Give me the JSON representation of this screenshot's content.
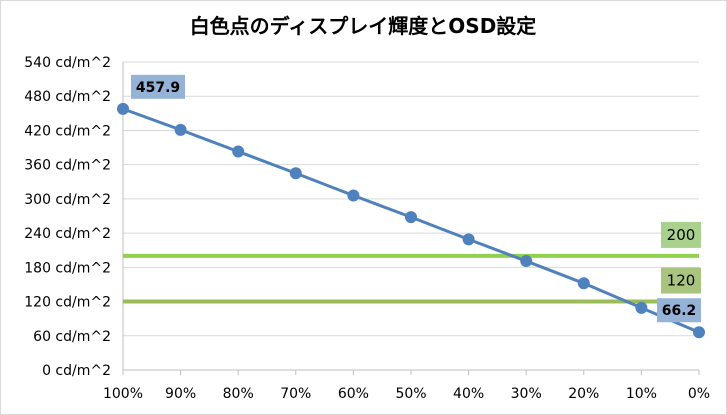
{
  "chart_data": {
    "type": "line",
    "title": "白色点のディスプレイ輝度とOSD設定",
    "xlabel": "",
    "ylabel": "",
    "categories": [
      "100%",
      "90%",
      "80%",
      "70%",
      "60%",
      "50%",
      "40%",
      "30%",
      "20%",
      "10%",
      "0%"
    ],
    "ylim": [
      0,
      540
    ],
    "yticks": [
      0,
      60,
      120,
      180,
      240,
      300,
      360,
      420,
      480,
      540
    ],
    "ytick_labels": [
      "0 cd/m^2",
      "60 cd/m^2",
      "120 cd/m^2",
      "180 cd/m^2",
      "240 cd/m^2",
      "300 cd/m^2",
      "360 cd/m^2",
      "420 cd/m^2",
      "480 cd/m^2",
      "540 cd/m^2"
    ],
    "grid": "horizontal",
    "legend": "none",
    "series": [
      {
        "values": [
          457.9,
          421,
          383,
          345,
          306,
          268,
          229,
          191,
          152,
          109,
          66.2
        ],
        "color": "#4f81bd"
      }
    ],
    "data_labels": [
      {
        "index": 0,
        "text": "457.9",
        "bg": "#95b3d7"
      },
      {
        "index": 10,
        "text": "66.2",
        "bg": "#95b3d7"
      }
    ],
    "reference_lines": [
      {
        "value": 200,
        "label": "200",
        "color": "#92d050",
        "label_bg": "#a9d18e"
      },
      {
        "value": 120,
        "label": "120",
        "color": "#9bbb59",
        "label_bg": "#a9c47f"
      }
    ]
  }
}
